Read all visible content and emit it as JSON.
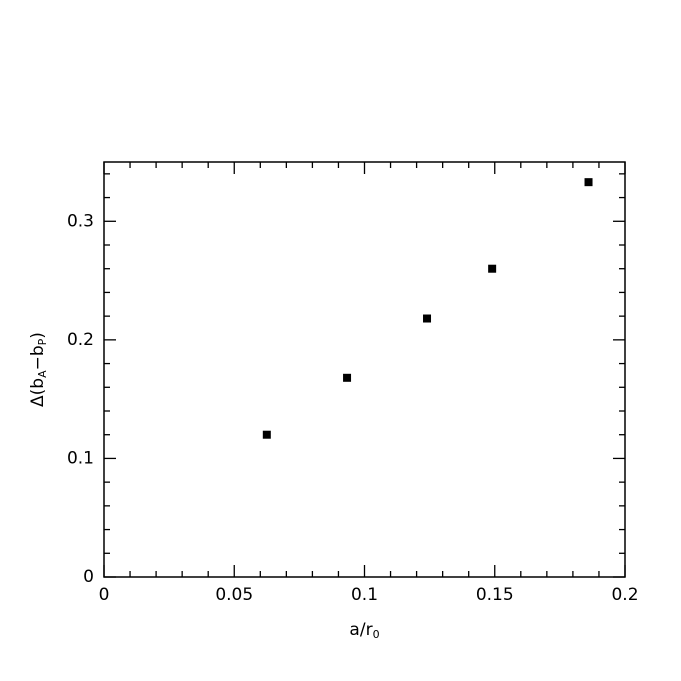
{
  "chart_data": {
    "type": "scatter",
    "xlabel": [
      "a/r",
      "0"
    ],
    "ylabel": [
      "Δ(b",
      "A",
      "−b",
      "P",
      ")"
    ],
    "x": [
      0.0625,
      0.0933,
      0.124,
      0.149,
      0.186
    ],
    "values": [
      0.12,
      0.168,
      0.218,
      0.26,
      0.333
    ],
    "color": "#000000",
    "xlim": [
      0,
      0.2
    ],
    "xticks": [
      0,
      0.05,
      0.1,
      0.15,
      0.2
    ],
    "xminorticks": [
      0.01,
      0.02,
      0.03,
      0.04,
      0.06,
      0.07,
      0.08,
      0.09,
      0.11,
      0.12,
      0.13,
      0.14,
      0.16,
      0.17,
      0.18,
      0.19
    ],
    "ylim": [
      0,
      0.35
    ],
    "yticks": [
      0,
      0.1,
      0.2,
      0.3
    ],
    "yminorticks": [
      0.02,
      0.04,
      0.06,
      0.08,
      0.12,
      0.14,
      0.16,
      0.18,
      0.22,
      0.24,
      0.26,
      0.28,
      0.32,
      0.34
    ]
  }
}
